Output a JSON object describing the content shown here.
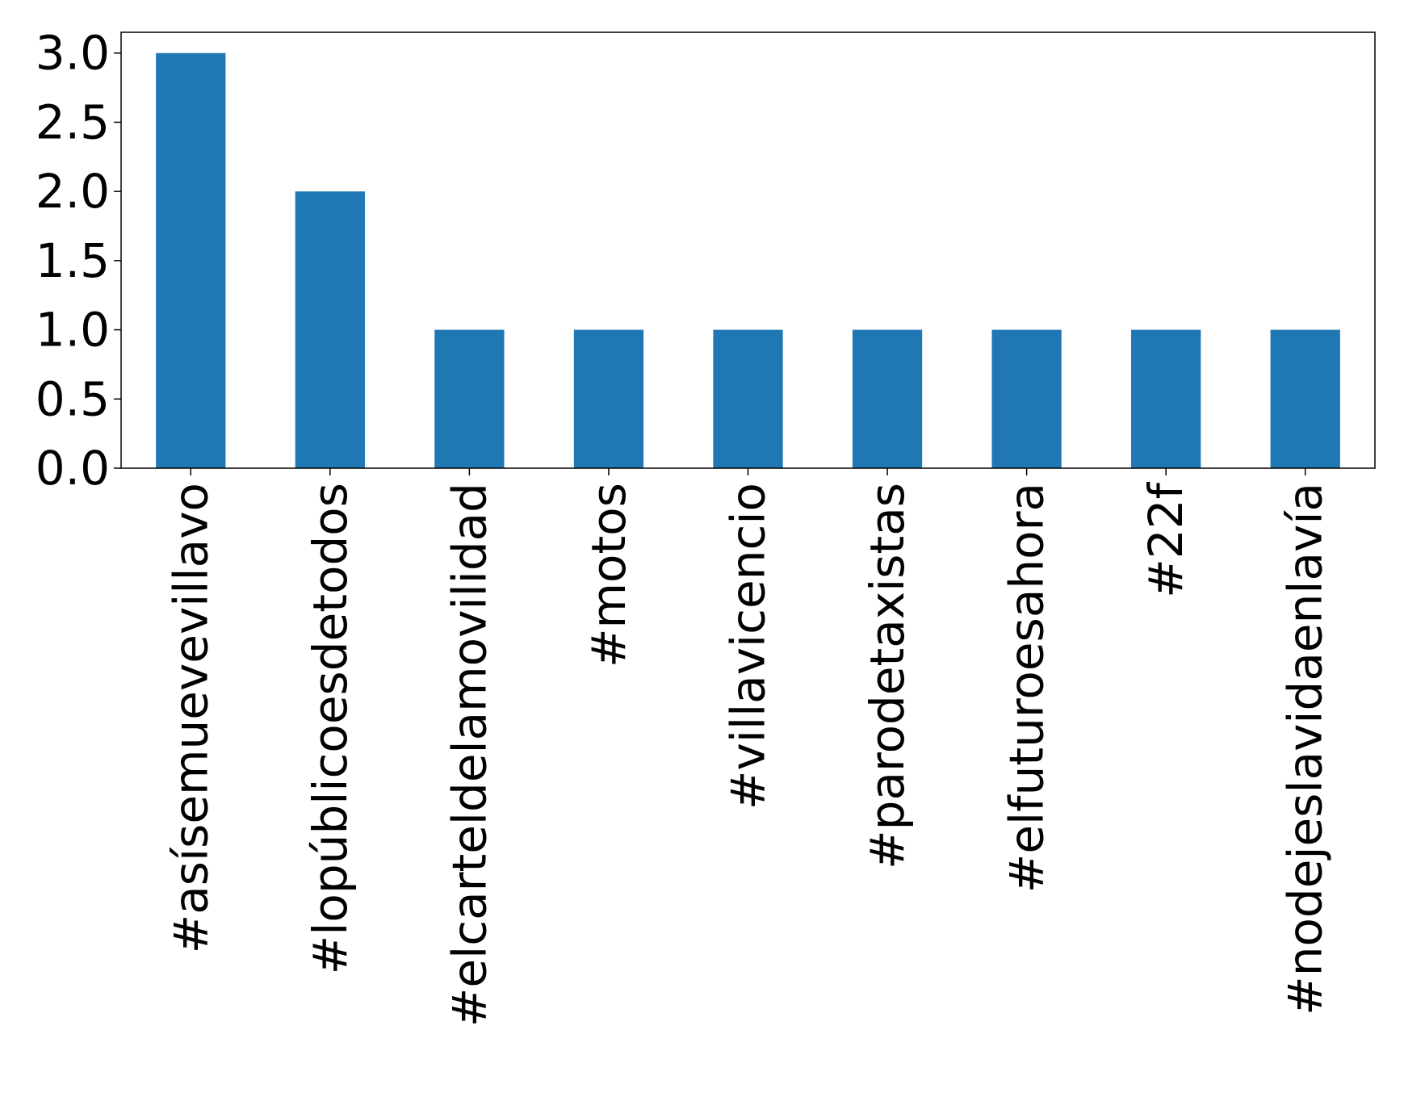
{
  "chart_data": {
    "type": "bar",
    "title": "",
    "xlabel": "",
    "ylabel": "",
    "categories": [
      "#asísemuevevillavo",
      "#lopúblicoesdetodos",
      "#elcarteldelamovilidad",
      "#motos",
      "#villavicencio",
      "#parodetaxistas",
      "#elfuturoesahora",
      "#22f",
      "#nodejeslavidaenlavía"
    ],
    "values": [
      3,
      2,
      1,
      1,
      1,
      1,
      1,
      1,
      1
    ],
    "ylim": [
      0,
      3.15
    ],
    "yticks": [
      "0.0",
      "0.5",
      "1.0",
      "1.5",
      "2.0",
      "2.5",
      "3.0"
    ],
    "bar_color": "#1f77b4",
    "grid": false,
    "legend": "none"
  }
}
